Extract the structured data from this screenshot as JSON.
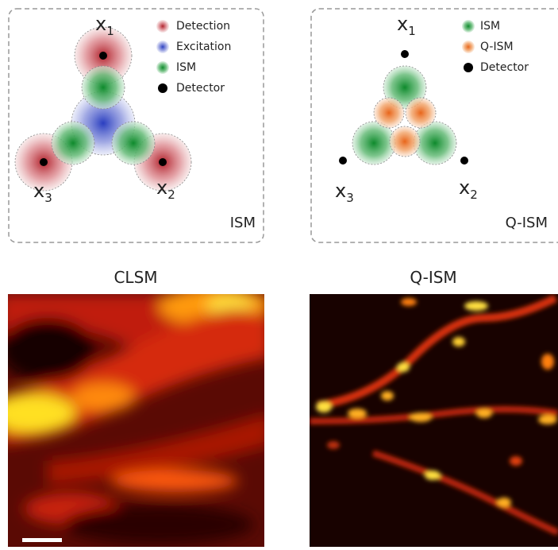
{
  "panels": {
    "ism": {
      "points": [
        {
          "letter": "x",
          "sub": "1"
        },
        {
          "letter": "x",
          "sub": "2"
        },
        {
          "letter": "x",
          "sub": "3"
        }
      ],
      "legend": [
        "Detection",
        "Excitation",
        "ISM",
        "Detector"
      ],
      "label": "ISM"
    },
    "qism": {
      "points": [
        {
          "letter": "x",
          "sub": "1"
        },
        {
          "letter": "x",
          "sub": "2"
        },
        {
          "letter": "x",
          "sub": "3"
        }
      ],
      "legend": [
        "ISM",
        "Q-ISM",
        "Detector"
      ],
      "label": "Q-ISM"
    }
  },
  "images": {
    "left": {
      "title": "CLSM"
    },
    "right": {
      "title": "Q-ISM"
    }
  }
}
